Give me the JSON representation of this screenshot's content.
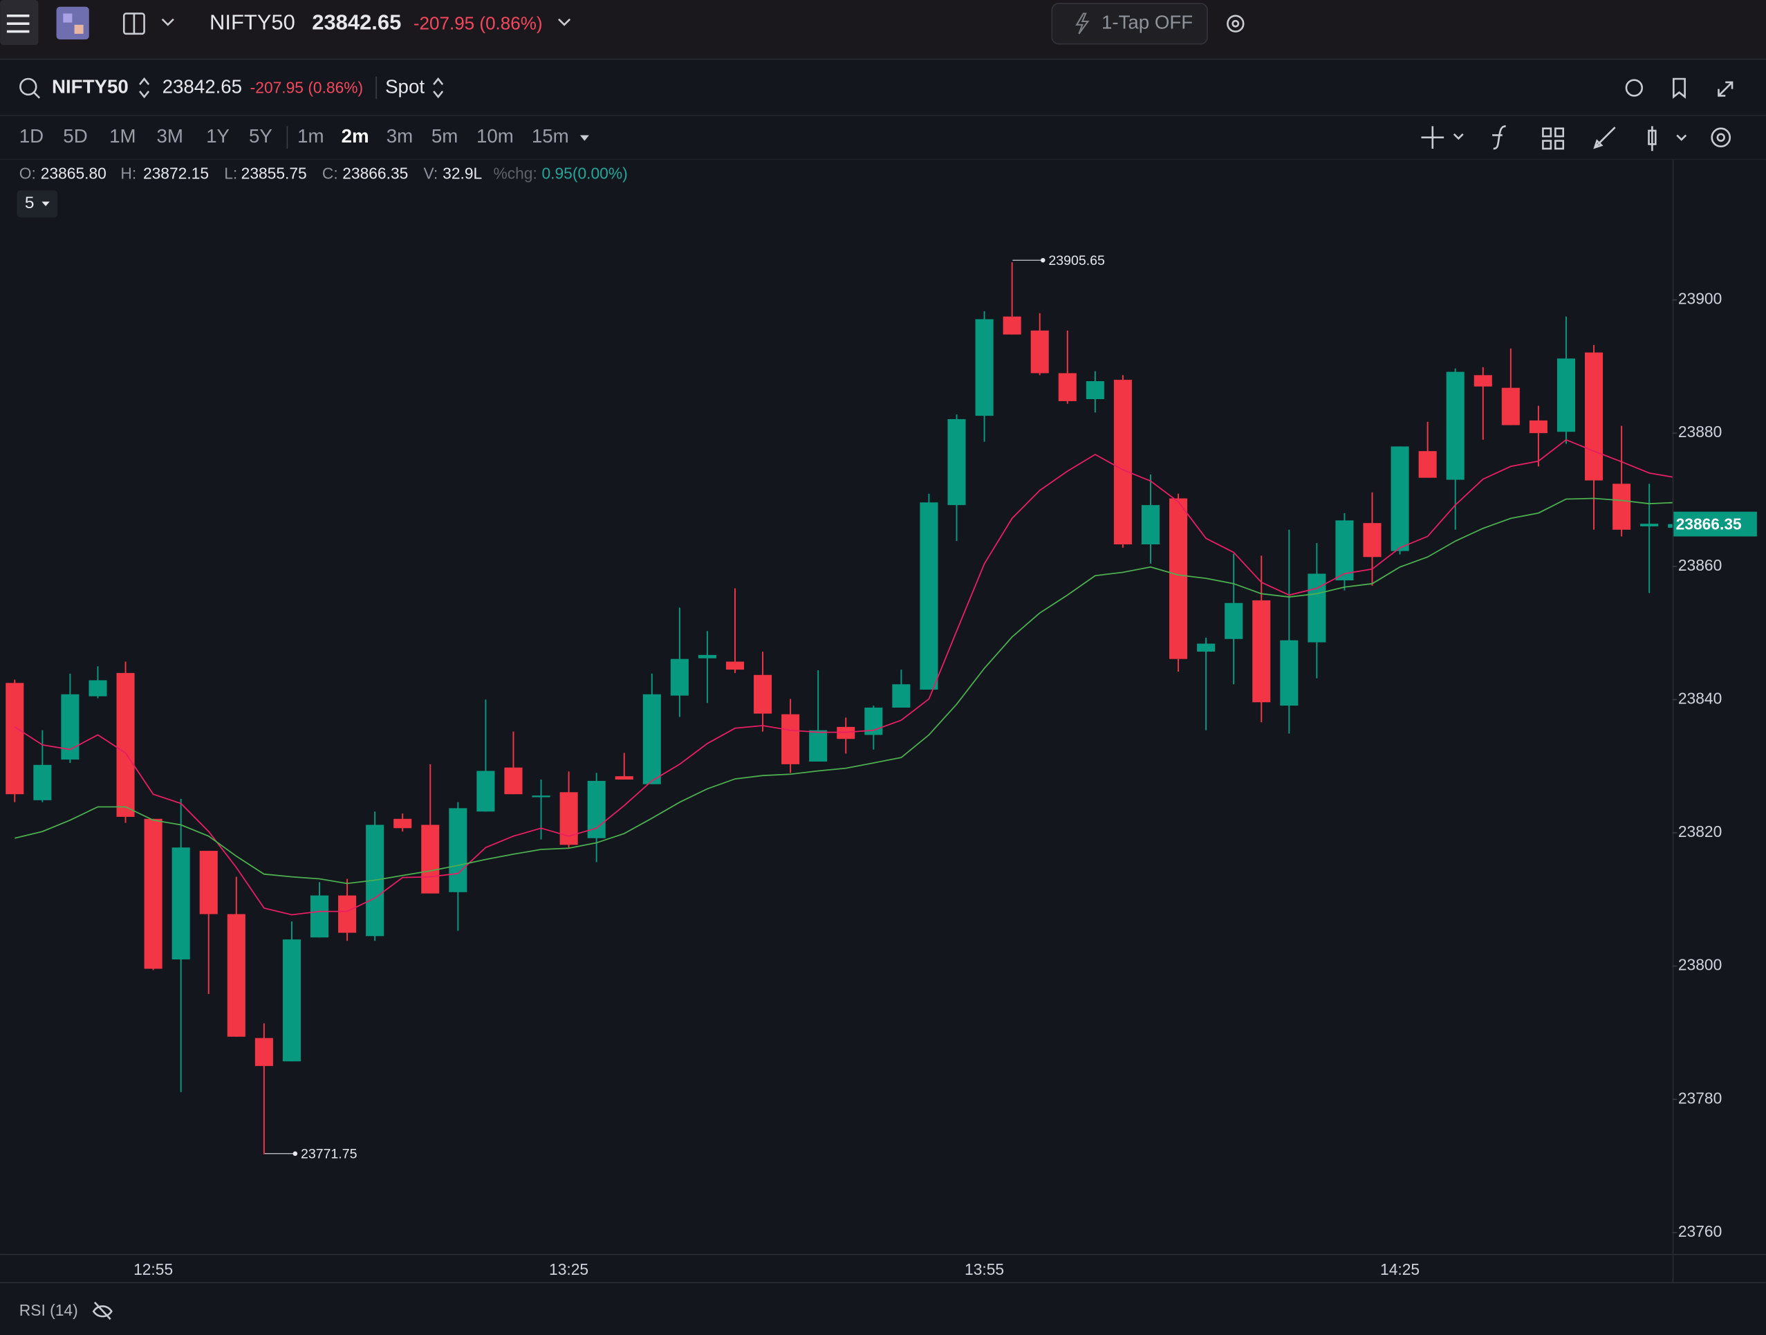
{
  "top_bar": {
    "symbol": "NIFTY50",
    "price": "23842.65",
    "change": "-207.95 (0.86%)",
    "one_tap": "1-Tap OFF"
  },
  "symbol_bar": {
    "symbol": "NIFTY50",
    "price": "23842.65",
    "change": "-207.95 (0.86%)",
    "segment": "Spot"
  },
  "timeframes": {
    "ranges": [
      "1D",
      "5D",
      "1M",
      "3M",
      "1Y",
      "5Y"
    ],
    "intervals": [
      "1m",
      "2m",
      "3m",
      "5m",
      "10m",
      "15m"
    ]
  },
  "ohlc_legend": {
    "open_label": "O:",
    "open": "23865.80",
    "high_label": "H:",
    "high": "23872.15",
    "low_label": "L:",
    "low": "23855.75",
    "close_label": "C:",
    "close": "23866.35",
    "volume_label": "V:",
    "volume": "32.9L",
    "change_label": "%chg:",
    "change": "0.95(0.00%)"
  },
  "ma_period": "5",
  "indicator": "RSI (14)",
  "chart_data": {
    "type": "candlestick",
    "categories": [
      null,
      null,
      null,
      null,
      null,
      "12:55",
      null,
      null,
      null,
      null,
      null,
      null,
      null,
      null,
      null,
      null,
      null,
      null,
      null,
      null,
      "13:25",
      null,
      null,
      null,
      null,
      null,
      null,
      null,
      null,
      null,
      null,
      null,
      null,
      null,
      null,
      "13:55",
      null,
      null,
      null,
      null,
      null,
      null,
      null,
      null,
      null,
      null,
      null,
      null,
      null,
      null,
      "14:25",
      null,
      null,
      null,
      null,
      null,
      null,
      null,
      null,
      null,
      null
    ],
    "candles": {
      "open": [
        23842.5,
        23824.9,
        23831.0,
        23840.5,
        23844.0,
        23822.1,
        23801.0,
        23817.3,
        23807.8,
        23789.2,
        23785.7,
        23804.3,
        23810.6,
        23804.5,
        23822.1,
        23821.2,
        23811.1,
        23823.2,
        23829.8,
        23825.6,
        23826.1,
        23819.2,
        23828.5,
        23827.3,
        23840.6,
        23846.2,
        23845.7,
        23843.7,
        23837.8,
        23830.7,
        23835.9,
        23834.7,
        23838.8,
        23841.5,
        23869.2,
        23882.6,
        23897.5,
        23895.4,
        23889.0,
        23885.1,
        23888.0,
        23863.3,
        23870.2,
        23847.2,
        23849.1,
        23854.9,
        23839.1,
        23848.6,
        23857.9,
        23866.5,
        23862.3,
        23877.3,
        23873.0,
        23888.7,
        23886.8,
        23881.9,
        23880.2,
        23892.1,
        23872.4,
        23866.0,
        23865.8
      ],
      "high": [
        23843.0,
        23835.4,
        23843.9,
        23845.0,
        23845.7,
        23822.1,
        23825.1,
        23817.3,
        23813.4,
        23791.4,
        23806.7,
        23812.6,
        23813.1,
        23823.2,
        23822.9,
        23830.3,
        23824.6,
        23840.0,
        23835.2,
        23828.0,
        23829.2,
        23829.0,
        23832.0,
        23843.9,
        23853.8,
        23850.3,
        23856.7,
        23847.2,
        23840.1,
        23844.4,
        23837.3,
        23839.1,
        23844.5,
        23870.9,
        23882.8,
        23898.3,
        23905.65,
        23898.0,
        23895.4,
        23889.3,
        23888.7,
        23873.8,
        23870.9,
        23849.3,
        23861.9,
        23861.6,
        23865.5,
        23863.5,
        23868.0,
        23871.1,
        23878.0,
        23881.7,
        23889.7,
        23889.9,
        23892.7,
        23884.1,
        23897.5,
        23893.2,
        23881.1,
        23872.4,
        23872.15
      ],
      "low": [
        23824.6,
        23824.6,
        23830.5,
        23840.2,
        23821.5,
        23799.4,
        23781.1,
        23795.8,
        23789.4,
        23771.75,
        23785.7,
        23804.3,
        23803.8,
        23803.8,
        23820.2,
        23810.9,
        23805.3,
        23823.2,
        23825.8,
        23819.0,
        23817.8,
        23815.6,
        23828.0,
        23827.3,
        23837.4,
        23839.5,
        23844.0,
        23835.2,
        23829.0,
        23830.7,
        23831.9,
        23832.5,
        23838.8,
        23841.5,
        23863.8,
        23878.7,
        23894.8,
        23888.7,
        23884.4,
        23883.1,
        23862.8,
        23860.4,
        23844.2,
        23835.4,
        23842.3,
        23836.6,
        23834.9,
        23843.2,
        23856.4,
        23857.1,
        23861.8,
        23873.3,
        23865.5,
        23879.0,
        23881.2,
        23875.0,
        23878.4,
        23865.5,
        23864.5,
        23856.0,
        23855.75
      ],
      "close": [
        23825.8,
        23830.2,
        23840.8,
        23842.9,
        23822.4,
        23799.6,
        23817.8,
        23807.8,
        23789.4,
        23785.0,
        23804.0,
        23810.6,
        23805.0,
        23821.2,
        23820.7,
        23810.9,
        23823.7,
        23829.3,
        23825.8,
        23825.6,
        23818.2,
        23827.8,
        23828.0,
        23840.8,
        23846.1,
        23846.7,
        23844.5,
        23837.9,
        23830.3,
        23835.4,
        23834.1,
        23838.8,
        23842.3,
        23869.6,
        23882.1,
        23897.1,
        23894.8,
        23889.0,
        23884.8,
        23887.8,
        23863.3,
        23869.2,
        23846.1,
        23848.4,
        23854.5,
        23839.6,
        23848.9,
        23858.9,
        23866.9,
        23861.4,
        23878.0,
        23873.3,
        23889.2,
        23887.0,
        23881.2,
        23880.0,
        23891.2,
        23872.9,
        23865.5,
        23866.4,
        23866.35
      ]
    },
    "up_color": "#089981",
    "down_color": "#f23645",
    "lines": [
      {
        "color": "#e91e63",
        "values": [
          23835.9,
          23833.2,
          23832.5,
          23834.7,
          23832.0,
          23825.8,
          23824.4,
          23820.2,
          23814.8,
          23808.7,
          23807.7,
          23808.2,
          23808.2,
          23810.2,
          23813.3,
          23813.4,
          23813.9,
          23817.8,
          23819.5,
          23820.7,
          23819.5,
          23820.7,
          23824.1,
          23827.8,
          23830.3,
          23833.4,
          23835.7,
          23836.1,
          23835.4,
          23835.1,
          23835.1,
          23835.4,
          23836.9,
          23840.1,
          23850.3,
          23860.4,
          23867.2,
          23871.4,
          23874.3,
          23876.8,
          23874.5,
          23872.8,
          23869.7,
          23864.2,
          23862.1,
          23857.6,
          23855.7,
          23856.7,
          23858.9,
          23859.6,
          23862.8,
          23864.5,
          23869.2,
          23873.1,
          23875.0,
          23875.8,
          23879.0,
          23877.3,
          23875.7,
          23874.0,
          23873.3
        ]
      },
      {
        "color": "#4caf50",
        "values": [
          23819.2,
          23820.2,
          23821.9,
          23823.9,
          23823.9,
          23821.9,
          23821.2,
          23819.5,
          23816.5,
          23813.8,
          23813.4,
          23813.1,
          23812.4,
          23812.9,
          23813.6,
          23814.3,
          23815.1,
          23816.0,
          23816.8,
          23817.5,
          23817.7,
          23818.5,
          23819.9,
          23822.2,
          23824.6,
          23826.6,
          23828.1,
          23828.6,
          23828.8,
          23829.3,
          23829.7,
          23830.5,
          23831.3,
          23834.7,
          23839.3,
          23844.7,
          23849.4,
          23853.0,
          23855.7,
          23858.6,
          23859.1,
          23859.9,
          23858.7,
          23858.2,
          23857.4,
          23855.9,
          23855.4,
          23855.9,
          23856.9,
          23857.4,
          23859.9,
          23861.4,
          23863.8,
          23865.7,
          23867.2,
          23868.0,
          23870.1,
          23870.2,
          23869.9,
          23869.4,
          23869.6
        ]
      }
    ],
    "annotations": [
      "23905.65",
      "23771.75"
    ],
    "last_price_label": "23866.35",
    "ylim": [
      23756.8,
      23921.0
    ],
    "yticks": [
      23760,
      23780,
      23800,
      23820,
      23840,
      23860,
      23880,
      23900
    ],
    "grid": false
  }
}
